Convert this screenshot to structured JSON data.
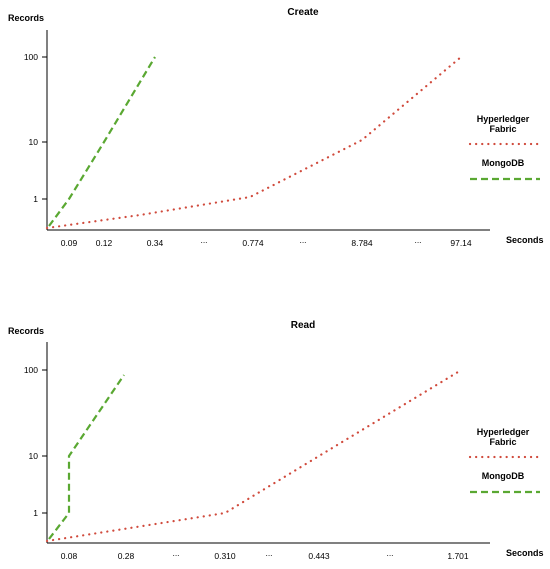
{
  "chart_data": [
    {
      "type": "line",
      "title": "Create",
      "ylabel": "Records",
      "xlabel": "Seconds",
      "yscale": "log",
      "y_ticks": [
        "100",
        "10",
        "1"
      ],
      "x_tick_labels": [
        "0.09",
        "0.12",
        "0.34",
        "...",
        "0.774",
        "...",
        "8.784",
        "...",
        "97.14"
      ],
      "legend_position": "right",
      "series": [
        {
          "name": "Hyperledger Fabric",
          "color": "#d04a3c",
          "style": "dotted",
          "points": [
            [
              0,
              0.6
            ],
            [
              0.774,
              1
            ],
            [
              8.784,
              10
            ],
            [
              97.14,
              100
            ]
          ]
        },
        {
          "name": "MongoDB",
          "color": "#5aa832",
          "style": "dashed",
          "points": [
            [
              0,
              0.6
            ],
            [
              0.09,
              1
            ],
            [
              0.34,
              100
            ]
          ]
        }
      ]
    },
    {
      "type": "line",
      "title": "Read",
      "ylabel": "Records",
      "xlabel": "Seconds",
      "yscale": "log",
      "y_ticks": [
        "100",
        "10",
        "1"
      ],
      "x_tick_labels": [
        "0.08",
        "0.28",
        "...",
        "0.310",
        "...",
        "0.443",
        "...",
        "1.701"
      ],
      "legend_position": "right",
      "series": [
        {
          "name": "Hyperledger Fabric",
          "color": "#d04a3c",
          "style": "dotted",
          "points": [
            [
              0,
              0.6
            ],
            [
              0.31,
              1
            ],
            [
              0.443,
              10
            ],
            [
              1.701,
              100
            ]
          ]
        },
        {
          "name": "MongoDB",
          "color": "#5aa832",
          "style": "dashed",
          "points": [
            [
              0,
              0.6
            ],
            [
              0.08,
              1
            ],
            [
              0.08,
              10
            ],
            [
              0.28,
              100
            ]
          ]
        }
      ]
    }
  ]
}
